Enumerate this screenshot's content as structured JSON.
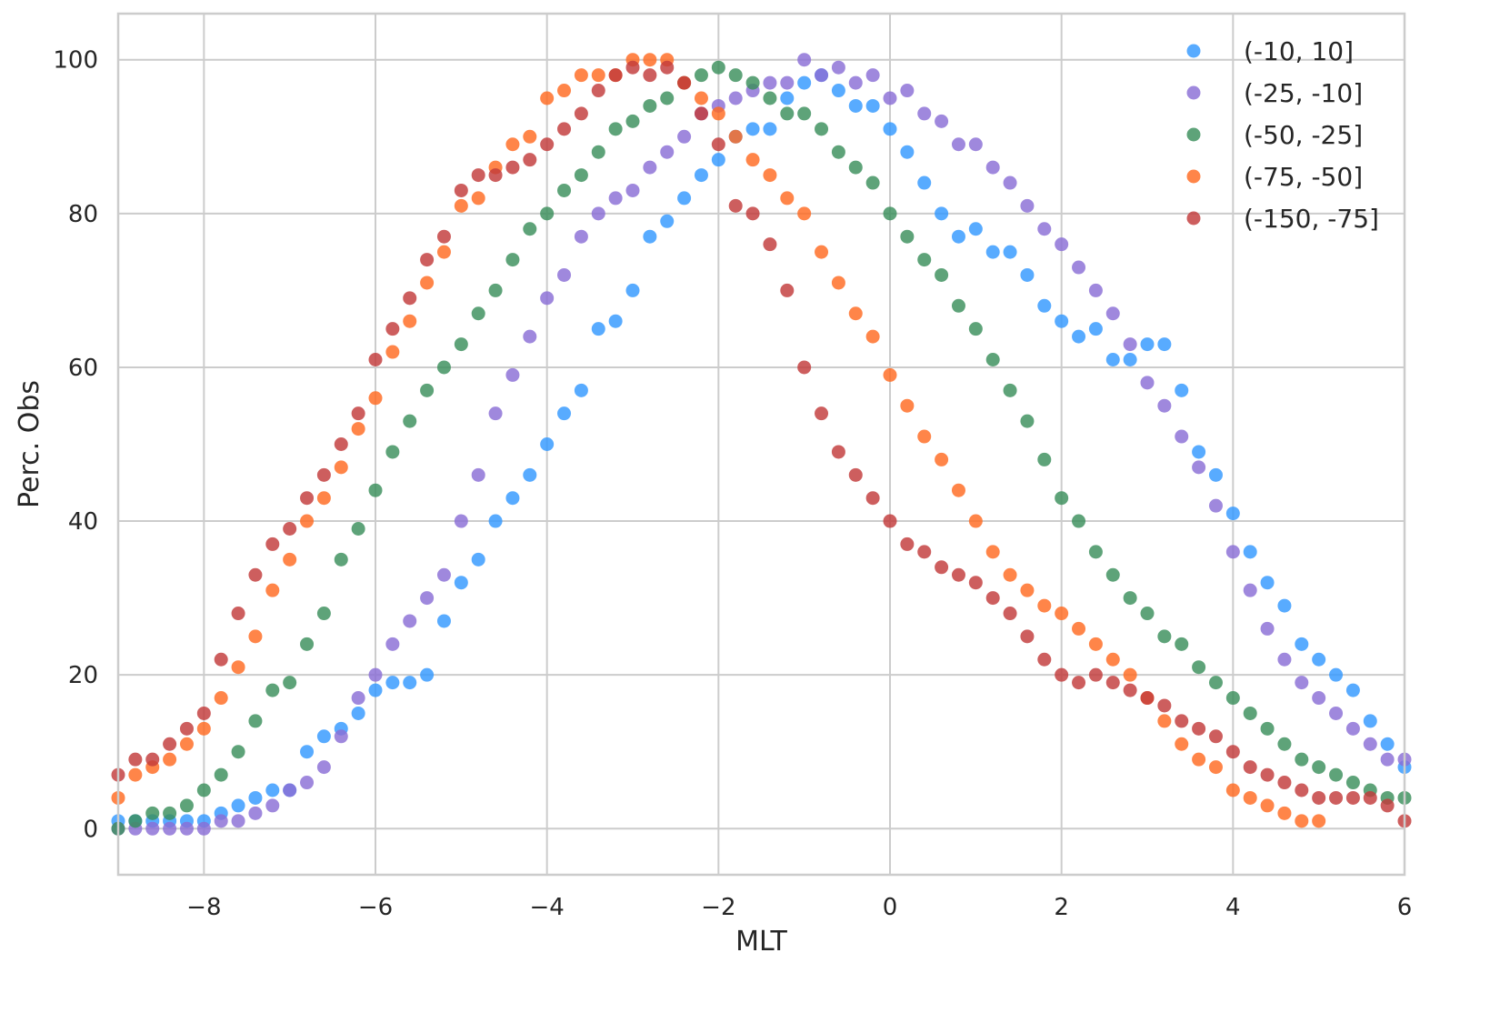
{
  "chart_data": {
    "type": "scatter",
    "xlabel": "MLT",
    "ylabel": "Perc. Obs",
    "xlim": [
      -9,
      6
    ],
    "ylim": [
      -6,
      106
    ],
    "xticks": [
      -8,
      -6,
      -4,
      -2,
      0,
      2,
      4,
      6
    ],
    "xtick_labels": [
      "−8",
      "−6",
      "−4",
      "−2",
      "0",
      "2",
      "4",
      "6"
    ],
    "yticks": [
      0,
      20,
      40,
      60,
      80,
      100
    ],
    "ytick_labels": [
      "0",
      "20",
      "40",
      "60",
      "80",
      "100"
    ],
    "grid": true,
    "legend_position": "top-right",
    "series": [
      {
        "name": "(-10, 10]",
        "color": "#3399ff",
        "x": [
          -9.0,
          -8.8,
          -8.6,
          -8.4,
          -8.2,
          -8.0,
          -7.8,
          -7.6,
          -7.4,
          -7.2,
          -7.0,
          -6.8,
          -6.6,
          -6.4,
          -6.2,
          -6.0,
          -5.8,
          -5.6,
          -5.4,
          -5.2,
          -5.0,
          -4.8,
          -4.6,
          -4.4,
          -4.2,
          -4.0,
          -3.8,
          -3.6,
          -3.4,
          -3.2,
          -3.0,
          -2.8,
          -2.6,
          -2.4,
          -2.2,
          -2.0,
          -1.8,
          -1.6,
          -1.4,
          -1.2,
          -1.0,
          -0.8,
          -0.6,
          -0.4,
          -0.2,
          0.0,
          0.2,
          0.4,
          0.6,
          0.8,
          1.0,
          1.2,
          1.4,
          1.6,
          1.8,
          2.0,
          2.2,
          2.4,
          2.6,
          2.8,
          3.0,
          3.2,
          3.4,
          3.6,
          3.8,
          4.0,
          4.2,
          4.4,
          4.6,
          4.8,
          5.0,
          5.2,
          5.4,
          5.6,
          5.8,
          6.0
        ],
        "y": [
          1,
          1,
          1,
          1,
          1,
          1,
          2,
          3,
          4,
          5,
          5,
          10,
          12,
          13,
          15,
          18,
          19,
          19,
          20,
          27,
          32,
          35,
          40,
          43,
          46,
          50,
          54,
          57,
          65,
          66,
          70,
          77,
          79,
          82,
          85,
          87,
          90,
          91,
          91,
          95,
          97,
          98,
          96,
          94,
          94,
          91,
          88,
          84,
          80,
          77,
          78,
          75,
          75,
          72,
          68,
          66,
          64,
          65,
          61,
          61,
          63,
          63,
          57,
          49,
          46,
          41,
          36,
          32,
          29,
          24,
          22,
          20,
          18,
          14,
          11,
          8
        ]
      },
      {
        "name": "(-25, -10]",
        "color": "#8a6ed6",
        "x": [
          -9.0,
          -8.8,
          -8.6,
          -8.4,
          -8.2,
          -8.0,
          -7.8,
          -7.6,
          -7.4,
          -7.2,
          -7.0,
          -6.8,
          -6.6,
          -6.4,
          -6.2,
          -6.0,
          -5.8,
          -5.6,
          -5.4,
          -5.2,
          -5.0,
          -4.8,
          -4.6,
          -4.4,
          -4.2,
          -4.0,
          -3.8,
          -3.6,
          -3.4,
          -3.2,
          -3.0,
          -2.8,
          -2.6,
          -2.4,
          -2.2,
          -2.0,
          -1.8,
          -1.6,
          -1.4,
          -1.2,
          -1.0,
          -0.8,
          -0.6,
          -0.4,
          -0.2,
          0.0,
          0.2,
          0.4,
          0.6,
          0.8,
          1.0,
          1.2,
          1.4,
          1.6,
          1.8,
          2.0,
          2.2,
          2.4,
          2.6,
          2.8,
          3.0,
          3.2,
          3.4,
          3.6,
          3.8,
          4.0,
          4.2,
          4.4,
          4.6,
          4.8,
          5.0,
          5.2,
          5.4,
          5.6,
          5.8,
          6.0
        ],
        "y": [
          0,
          0,
          0,
          0,
          0,
          0,
          1,
          1,
          2,
          3,
          5,
          6,
          8,
          12,
          17,
          20,
          24,
          27,
          30,
          33,
          40,
          46,
          54,
          59,
          64,
          69,
          72,
          77,
          80,
          82,
          83,
          86,
          88,
          90,
          93,
          94,
          95,
          96,
          97,
          97,
          100,
          98,
          99,
          97,
          98,
          95,
          96,
          93,
          92,
          89,
          89,
          86,
          84,
          81,
          78,
          76,
          73,
          70,
          67,
          63,
          58,
          55,
          51,
          47,
          42,
          36,
          31,
          26,
          22,
          19,
          17,
          15,
          13,
          11,
          9,
          9
        ]
      },
      {
        "name": "(-50, -25]",
        "color": "#3a8f5c",
        "x": [
          -9.0,
          -8.8,
          -8.6,
          -8.4,
          -8.2,
          -8.0,
          -7.8,
          -7.6,
          -7.4,
          -7.2,
          -7.0,
          -6.8,
          -6.6,
          -6.4,
          -6.2,
          -6.0,
          -5.8,
          -5.6,
          -5.4,
          -5.2,
          -5.0,
          -4.8,
          -4.6,
          -4.4,
          -4.2,
          -4.0,
          -3.8,
          -3.6,
          -3.4,
          -3.2,
          -3.0,
          -2.8,
          -2.6,
          -2.4,
          -2.2,
          -2.0,
          -1.8,
          -1.6,
          -1.4,
          -1.2,
          -1.0,
          -0.8,
          -0.6,
          -0.4,
          -0.2,
          0.0,
          0.2,
          0.4,
          0.6,
          0.8,
          1.0,
          1.2,
          1.4,
          1.6,
          1.8,
          2.0,
          2.2,
          2.4,
          2.6,
          2.8,
          3.0,
          3.2,
          3.4,
          3.6,
          3.8,
          4.0,
          4.2,
          4.4,
          4.6,
          4.8,
          5.0,
          5.2,
          5.4,
          5.6,
          5.8,
          6.0
        ],
        "y": [
          0,
          1,
          2,
          2,
          3,
          5,
          7,
          10,
          14,
          18,
          19,
          24,
          28,
          35,
          39,
          44,
          49,
          53,
          57,
          60,
          63,
          67,
          70,
          74,
          78,
          80,
          83,
          85,
          88,
          91,
          92,
          94,
          95,
          97,
          98,
          99,
          98,
          97,
          95,
          93,
          93,
          91,
          88,
          86,
          84,
          80,
          77,
          74,
          72,
          68,
          65,
          61,
          57,
          53,
          48,
          43,
          40,
          36,
          33,
          30,
          28,
          25,
          24,
          21,
          19,
          17,
          15,
          13,
          11,
          9,
          8,
          7,
          6,
          5,
          4,
          4
        ]
      },
      {
        "name": "(-75, -50]",
        "color": "#ff6a21",
        "x": [
          -9.0,
          -8.8,
          -8.6,
          -8.4,
          -8.2,
          -8.0,
          -7.8,
          -7.6,
          -7.4,
          -7.2,
          -7.0,
          -6.8,
          -6.6,
          -6.4,
          -6.2,
          -6.0,
          -5.8,
          -5.6,
          -5.4,
          -5.2,
          -5.0,
          -4.8,
          -4.6,
          -4.4,
          -4.2,
          -4.0,
          -3.8,
          -3.6,
          -3.4,
          -3.2,
          -3.0,
          -2.8,
          -2.6,
          -2.4,
          -2.2,
          -2.0,
          -1.8,
          -1.6,
          -1.4,
          -1.2,
          -1.0,
          -0.8,
          -0.6,
          -0.4,
          -0.2,
          0.0,
          0.2,
          0.4,
          0.6,
          0.8,
          1.0,
          1.2,
          1.4,
          1.6,
          1.8,
          2.0,
          2.2,
          2.4,
          2.6,
          2.8,
          3.0,
          3.2,
          3.4,
          3.6,
          3.8,
          4.0,
          4.2,
          4.4,
          4.6,
          4.8,
          5.0
        ],
        "y": [
          4,
          7,
          8,
          9,
          11,
          13,
          17,
          21,
          25,
          31,
          35,
          40,
          43,
          47,
          52,
          56,
          62,
          66,
          71,
          75,
          81,
          82,
          86,
          89,
          90,
          95,
          96,
          98,
          98,
          98,
          100,
          100,
          100,
          97,
          95,
          93,
          90,
          87,
          85,
          82,
          80,
          75,
          71,
          67,
          64,
          59,
          55,
          51,
          48,
          44,
          40,
          36,
          33,
          31,
          29,
          28,
          26,
          24,
          22,
          20,
          17,
          14,
          11,
          9,
          8,
          5,
          4,
          3,
          2,
          1,
          1
        ]
      },
      {
        "name": "(-150, -75]",
        "color": "#c23a3a",
        "x": [
          -9.0,
          -8.8,
          -8.6,
          -8.4,
          -8.2,
          -8.0,
          -7.8,
          -7.6,
          -7.4,
          -7.2,
          -7.0,
          -6.8,
          -6.6,
          -6.4,
          -6.2,
          -6.0,
          -5.8,
          -5.6,
          -5.4,
          -5.2,
          -5.0,
          -4.8,
          -4.6,
          -4.4,
          -4.2,
          -4.0,
          -3.8,
          -3.6,
          -3.4,
          -3.2,
          -3.0,
          -2.8,
          -2.6,
          -2.4,
          -2.2,
          -2.0,
          -1.8,
          -1.6,
          -1.4,
          -1.2,
          -1.0,
          -0.8,
          -0.6,
          -0.4,
          -0.2,
          0.0,
          0.2,
          0.4,
          0.6,
          0.8,
          1.0,
          1.2,
          1.4,
          1.6,
          1.8,
          2.0,
          2.2,
          2.4,
          2.6,
          2.8,
          3.0,
          3.2,
          3.4,
          3.6,
          3.8,
          4.0,
          4.2,
          4.4,
          4.6,
          4.8,
          5.0,
          5.2,
          5.4,
          5.6,
          5.8,
          6.0
        ],
        "y": [
          7,
          9,
          9,
          11,
          13,
          15,
          22,
          28,
          33,
          37,
          39,
          43,
          46,
          50,
          54,
          61,
          65,
          69,
          74,
          77,
          83,
          85,
          85,
          86,
          87,
          89,
          91,
          93,
          96,
          98,
          99,
          98,
          99,
          97,
          93,
          89,
          81,
          80,
          76,
          70,
          60,
          54,
          49,
          46,
          43,
          40,
          37,
          36,
          34,
          33,
          32,
          30,
          28,
          25,
          22,
          20,
          19,
          20,
          19,
          18,
          17,
          16,
          14,
          13,
          12,
          10,
          8,
          7,
          6,
          5,
          4,
          4,
          4,
          4,
          3,
          1
        ]
      }
    ]
  }
}
